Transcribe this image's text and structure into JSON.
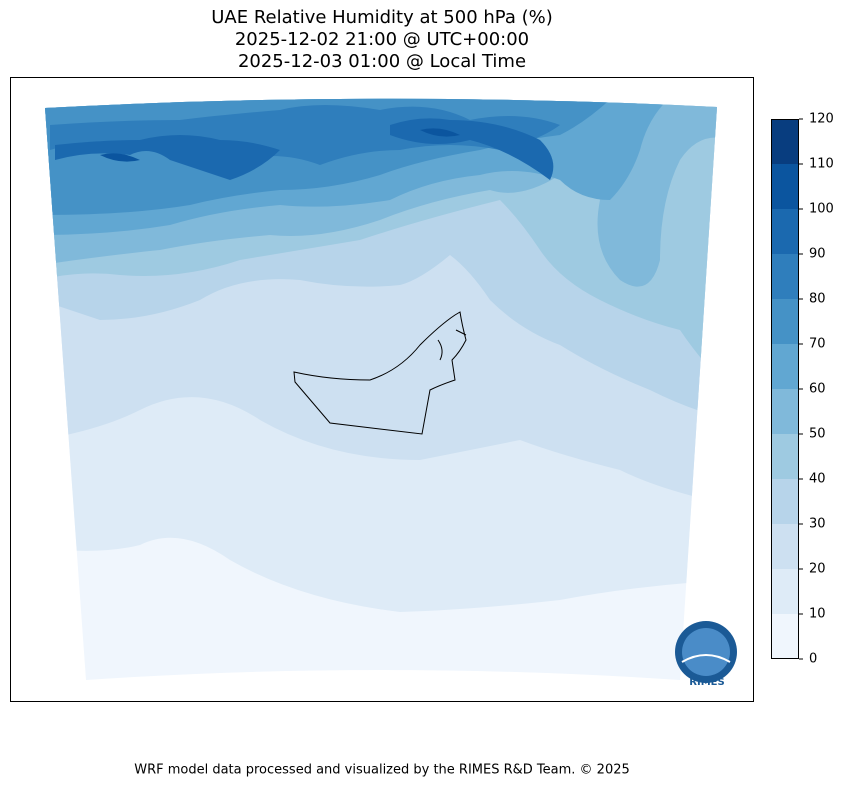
{
  "title": [
    "UAE Relative Humidity at 500 hPa (%)",
    "2025-12-02 21:00 @ UTC+00:00",
    "2025-12-03 01:00 @ Local Time"
  ],
  "colorbar": {
    "ticks": [
      0,
      10,
      20,
      30,
      40,
      50,
      60,
      70,
      80,
      90,
      100,
      110,
      120
    ],
    "colors": [
      "#f0f6fd",
      "#deebf7",
      "#cde0f1",
      "#b7d4ea",
      "#9ecae1",
      "#80b9da",
      "#61a7d2",
      "#4592c6",
      "#2f7ebc",
      "#1b69af",
      "#0b559f",
      "#083d7f"
    ]
  },
  "logo": {
    "text": "RIMES"
  },
  "footer": "WRF model data processed and visualized by the RIMES R&D Team. © 2025"
}
